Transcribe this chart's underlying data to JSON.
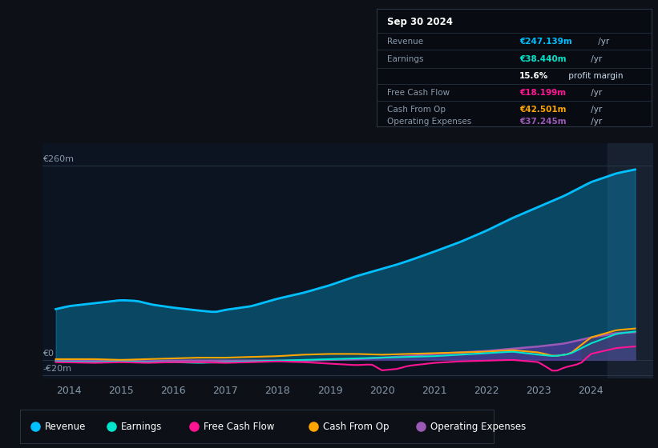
{
  "bg_color": "#0d1117",
  "plot_bg_color": "#0d1421",
  "title_box_bg": "#080c10",
  "series": {
    "revenue": {
      "color": "#00bfff",
      "label": "Revenue"
    },
    "earnings": {
      "color": "#00e5cc",
      "label": "Earnings"
    },
    "free_cash_flow": {
      "color": "#ff1493",
      "label": "Free Cash Flow"
    },
    "cash_from_op": {
      "color": "#ffa500",
      "label": "Cash From Op"
    },
    "operating_expenses": {
      "color": "#9b59b6",
      "label": "Operating Expenses"
    }
  },
  "y_label_260": "€260m",
  "y_label_0": "€0",
  "y_label_neg20": "-€20m",
  "x_labels": [
    "2014",
    "2015",
    "2016",
    "2017",
    "2018",
    "2019",
    "2020",
    "2021",
    "2022",
    "2023",
    "2024"
  ],
  "ylim": [
    -25,
    290
  ],
  "xlim_start": 2013.5,
  "xlim_end": 2025.2,
  "info_date": "Sep 30 2024",
  "info_rows": [
    {
      "label": "Revenue",
      "value": "€247.139m",
      "suffix": " /yr",
      "value_color": "#00bfff"
    },
    {
      "label": "Earnings",
      "value": "€38.440m",
      "suffix": " /yr",
      "value_color": "#00e5cc"
    },
    {
      "label": "",
      "value": "15.6%",
      "suffix": " profit margin",
      "value_color": "#ffffff"
    },
    {
      "label": "Free Cash Flow",
      "value": "€18.199m",
      "suffix": " /yr",
      "value_color": "#ff1493"
    },
    {
      "label": "Cash From Op",
      "value": "€42.501m",
      "suffix": " /yr",
      "value_color": "#ffa500"
    },
    {
      "label": "Operating Expenses",
      "value": "€37.245m",
      "suffix": " /yr",
      "value_color": "#9b59b6"
    }
  ],
  "legend_items": [
    {
      "label": "Revenue",
      "color": "#00bfff"
    },
    {
      "label": "Earnings",
      "color": "#00e5cc"
    },
    {
      "label": "Free Cash Flow",
      "color": "#ff1493"
    },
    {
      "label": "Cash From Op",
      "color": "#ffa500"
    },
    {
      "label": "Operating Expenses",
      "color": "#9b59b6"
    }
  ]
}
